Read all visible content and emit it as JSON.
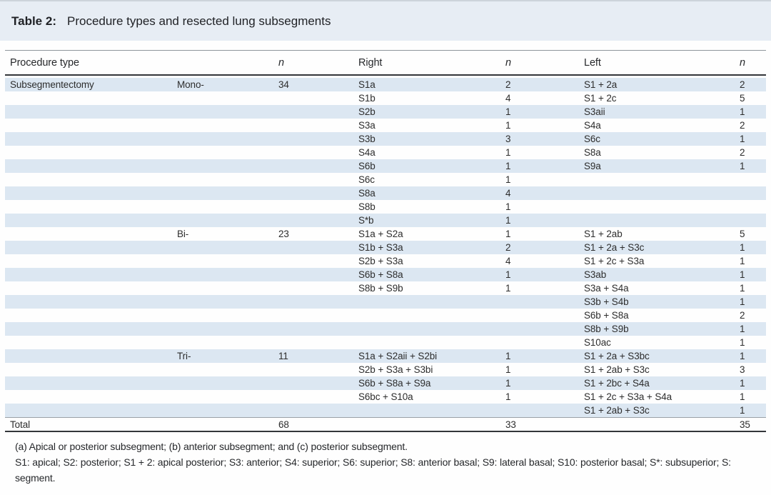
{
  "table": {
    "label": "Table 2:",
    "title": "Procedure types and resected lung subsegments",
    "columns": [
      {
        "label": "Procedure type",
        "italic": false
      },
      {
        "label": "",
        "italic": false
      },
      {
        "label": "n",
        "italic": true
      },
      {
        "label": "Right",
        "italic": false
      },
      {
        "label": "n",
        "italic": true
      },
      {
        "label": "Left",
        "italic": false
      },
      {
        "label": "n",
        "italic": true
      }
    ],
    "rows": [
      [
        "Subsegmentectomy",
        "Mono-",
        "34",
        "S1a",
        "2",
        "S1 + 2a",
        "2"
      ],
      [
        "",
        "",
        "",
        "S1b",
        "4",
        "S1 + 2c",
        "5"
      ],
      [
        "",
        "",
        "",
        "S2b",
        "1",
        "S3aii",
        "1"
      ],
      [
        "",
        "",
        "",
        "S3a",
        "1",
        "S4a",
        "2"
      ],
      [
        "",
        "",
        "",
        "S3b",
        "3",
        "S6c",
        "1"
      ],
      [
        "",
        "",
        "",
        "S4a",
        "1",
        "S8a",
        "2"
      ],
      [
        "",
        "",
        "",
        "S6b",
        "1",
        "S9a",
        "1"
      ],
      [
        "",
        "",
        "",
        "S6c",
        "1",
        "",
        ""
      ],
      [
        "",
        "",
        "",
        "S8a",
        "4",
        "",
        ""
      ],
      [
        "",
        "",
        "",
        "S8b",
        "1",
        "",
        ""
      ],
      [
        "",
        "",
        "",
        "S*b",
        "1",
        "",
        ""
      ],
      [
        "",
        "Bi-",
        "23",
        "S1a + S2a",
        "1",
        "S1 + 2ab",
        "5"
      ],
      [
        "",
        "",
        "",
        "S1b + S3a",
        "2",
        "S1 + 2a + S3c",
        "1"
      ],
      [
        "",
        "",
        "",
        "S2b + S3a",
        "4",
        "S1 + 2c + S3a",
        "1"
      ],
      [
        "",
        "",
        "",
        "S6b + S8a",
        "1",
        "S3ab",
        "1"
      ],
      [
        "",
        "",
        "",
        "S8b + S9b",
        "1",
        "S3a + S4a",
        "1"
      ],
      [
        "",
        "",
        "",
        "",
        "",
        "S3b + S4b",
        "1"
      ],
      [
        "",
        "",
        "",
        "",
        "",
        "S6b + S8a",
        "2"
      ],
      [
        "",
        "",
        "",
        "",
        "",
        "S8b + S9b",
        "1"
      ],
      [
        "",
        "",
        "",
        "",
        "",
        "S10ac",
        "1"
      ],
      [
        "",
        "Tri-",
        "11",
        "S1a + S2aii + S2bi",
        "1",
        "S1 + 2a + S3bc",
        "1"
      ],
      [
        "",
        "",
        "",
        "S2b + S3a + S3bi",
        "1",
        "S1 + 2ab + S3c",
        "3"
      ],
      [
        "",
        "",
        "",
        "S6b + S8a + S9a",
        "1",
        "S1 + 2bc + S4a",
        "1"
      ],
      [
        "",
        "",
        "",
        "S6bc + S10a",
        "1",
        "S1 + 2c + S3a + S4a",
        "1"
      ],
      [
        "",
        "",
        "",
        "",
        "",
        "S1 + 2ab + S3c",
        "1"
      ]
    ],
    "total_row": [
      "Total",
      "",
      "68",
      "",
      "33",
      "",
      "35"
    ],
    "footnotes": [
      "(a) Apical or posterior subsegment; (b) anterior subsegment; and (c) posterior subsegment.",
      "S1: apical; S2: posterior; S1 + 2: apical posterior; S3: anterior; S4: superior; S6: superior; S8: anterior basal; S9: lateral basal; S10: posterior basal; S*: subsuperior; S: segment."
    ],
    "colors": {
      "band_bg": "#e7edf4",
      "stripe_bg": "#dce7f2",
      "text": "#2d2d2d",
      "rule_dark": "#33363a",
      "rule_light": "#8f969c"
    }
  }
}
